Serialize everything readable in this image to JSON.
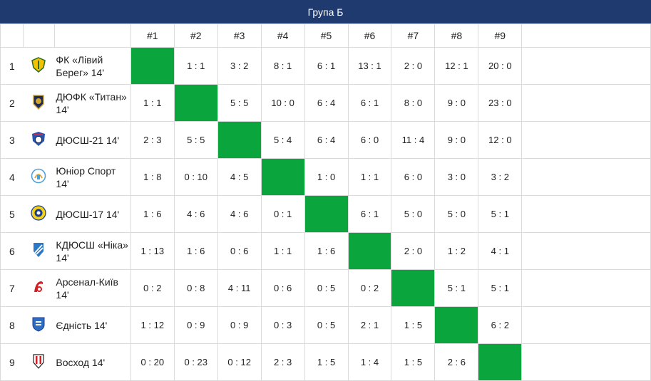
{
  "title": "Група Б",
  "columns": [
    "#1",
    "#2",
    "#3",
    "#4",
    "#5",
    "#6",
    "#7",
    "#8",
    "#9"
  ],
  "colors": {
    "header_bg": "#1e3a6f",
    "diagonal": "#0aa53c"
  },
  "rows": [
    {
      "rank": "1",
      "team": "ФК «Лівий Берег» 14'",
      "logo": "shield-yellow-icon",
      "scores": [
        "",
        "1 : 1",
        "3 : 2",
        "8 : 1",
        "6 : 1",
        "13 : 1",
        "2 : 0",
        "12 : 1",
        "20 : 0"
      ]
    },
    {
      "rank": "2",
      "team": "ДЮФК «Титан» 14'",
      "logo": "shield-navy-gold-icon",
      "scores": [
        "1 : 1",
        "",
        "5 : 5",
        "10 : 0",
        "6 : 4",
        "6 : 1",
        "8 : 0",
        "9 : 0",
        "23 : 0"
      ]
    },
    {
      "rank": "3",
      "team": "ДЮСШ-21 14'",
      "logo": "shield-blue-ball-icon",
      "scores": [
        "2 : 3",
        "5 : 5",
        "",
        "5 : 4",
        "6 : 4",
        "6 : 0",
        "11 : 4",
        "9 : 0",
        "12 : 0"
      ]
    },
    {
      "rank": "4",
      "team": "Юніор Спорт 14'",
      "logo": "crest-light-blue-icon",
      "scores": [
        "1 : 8",
        "0 : 10",
        "4 : 5",
        "",
        "1 : 0",
        "1 : 1",
        "6 : 0",
        "3 : 0",
        "3 : 2"
      ]
    },
    {
      "rank": "5",
      "team": "ДЮСШ-17 14'",
      "logo": "ball-yellow-blue-icon",
      "scores": [
        "1 : 6",
        "4 : 6",
        "4 : 6",
        "0 : 1",
        "",
        "6 : 1",
        "5 : 0",
        "5 : 0",
        "5 : 1"
      ]
    },
    {
      "rank": "6",
      "team": "КДЮСШ «Ніка» 14'",
      "logo": "shield-blue-white-icon",
      "scores": [
        "1 : 13",
        "1 : 6",
        "0 : 6",
        "1 : 1",
        "1 : 6",
        "",
        "2 : 0",
        "1 : 2",
        "4 : 1"
      ]
    },
    {
      "rank": "7",
      "team": "Арсенал-Київ 14'",
      "logo": "cannon-red-icon",
      "scores": [
        "0 : 2",
        "0 : 8",
        "4 : 11",
        "0 : 6",
        "0 : 5",
        "0 : 2",
        "",
        "5 : 1",
        "5 : 1"
      ]
    },
    {
      "rank": "8",
      "team": "Єдність 14'",
      "logo": "shield-blue-icon",
      "scores": [
        "1 : 12",
        "0 : 9",
        "0 : 9",
        "0 : 3",
        "0 : 5",
        "2 : 1",
        "1 : 5",
        "",
        "6 : 2"
      ]
    },
    {
      "rank": "9",
      "team": "Восход 14'",
      "logo": "shield-red-black-icon",
      "scores": [
        "0 : 20",
        "0 : 23",
        "0 : 12",
        "2 : 3",
        "1 : 5",
        "1 : 4",
        "1 : 5",
        "2 : 6",
        ""
      ]
    }
  ]
}
